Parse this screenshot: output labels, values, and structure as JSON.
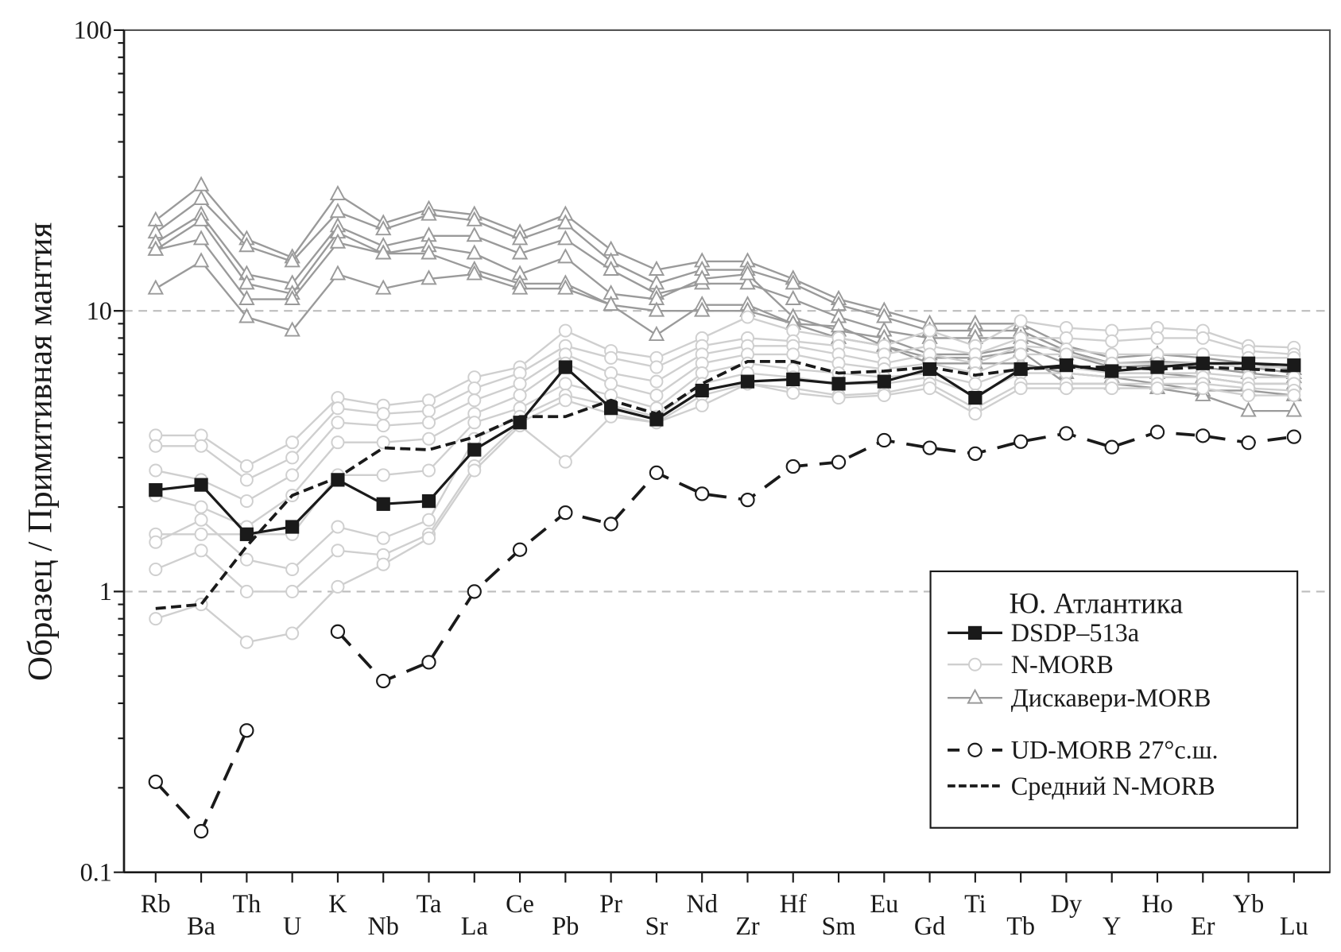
{
  "chart_data": {
    "type": "line",
    "title": "",
    "xlabel": "",
    "ylabel": "Образец / Примитивная мантия",
    "yscale": "log",
    "ylim": [
      0.1,
      100
    ],
    "yticks": [
      "0.1",
      "1",
      "10",
      "100"
    ],
    "grid": "dashed lines at 1 and 10",
    "categories": [
      "Rb",
      "Ba",
      "Th",
      "U",
      "K",
      "Nb",
      "Ta",
      "La",
      "Ce",
      "Pb",
      "Pr",
      "Sr",
      "Nd",
      "Zr",
      "Hf",
      "Sm",
      "Eu",
      "Gd",
      "Ti",
      "Tb",
      "Dy",
      "Y",
      "Ho",
      "Er",
      "Yb",
      "Lu"
    ],
    "legend": {
      "title": "Ю. Атлантика",
      "placement": "bottom-right",
      "entries": [
        "DSDP–513a",
        "N-MORB",
        "Дискавери-MORB",
        "UD-MORB 27°с.ш.",
        "Средний N-MORB"
      ]
    },
    "series": [
      {
        "name": "Дискавери-MORB",
        "group": "discovery",
        "color": "#9a9a9a",
        "marker": "triangle",
        "values": [
          21,
          28,
          18,
          15.5,
          26,
          20.5,
          23,
          22,
          19,
          22,
          16.5,
          14,
          15,
          15,
          13,
          11,
          10,
          9,
          9,
          9,
          7.5,
          6.8,
          7,
          6.8,
          6.5,
          6.2
        ]
      },
      {
        "name": "Дискавери-MORB",
        "group": "discovery",
        "color": "#9a9a9a",
        "marker": "triangle",
        "values": [
          19,
          25,
          17,
          15,
          22.5,
          19.5,
          22,
          21,
          18,
          20.5,
          15,
          12.5,
          14,
          14,
          12.5,
          10.5,
          9.5,
          8.5,
          8.5,
          8.5,
          7.2,
          6.5,
          6.6,
          6.5,
          6.3,
          6
        ]
      },
      {
        "name": "Дискавери-MORB",
        "group": "discovery",
        "color": "#9a9a9a",
        "marker": "triangle",
        "values": [
          17.5,
          22,
          13.5,
          12.5,
          20,
          17,
          18.5,
          18.5,
          16,
          18,
          14,
          11.5,
          12.5,
          12.5,
          11,
          9.5,
          8.5,
          8,
          8,
          8,
          7,
          6.3,
          6.4,
          6.3,
          6,
          5.8
        ]
      },
      {
        "name": "Дискавери-MORB",
        "group": "discovery",
        "color": "#9a9a9a",
        "marker": "triangle",
        "values": [
          16.5,
          21,
          12.5,
          11.5,
          19,
          16,
          17,
          16,
          13.5,
          15.5,
          11.5,
          11,
          13,
          13.5,
          9.5,
          8.5,
          8,
          7,
          7,
          7.5,
          6.5,
          6,
          6,
          5.8,
          5.5,
          5.5
        ]
      },
      {
        "name": "Дискавери-MORB",
        "group": "discovery",
        "color": "#9a9a9a",
        "marker": "triangle",
        "values": [
          16.5,
          18,
          11,
          11,
          17.5,
          16,
          16,
          14,
          12.5,
          12.5,
          10.5,
          8.2,
          10.5,
          10.5,
          9,
          8,
          7.5,
          6.5,
          6.5,
          6.5,
          6,
          5.8,
          5.5,
          5.2,
          5.2,
          5
        ]
      },
      {
        "name": "Дискавери-MORB",
        "group": "discovery",
        "color": "#9a9a9a",
        "marker": "triangle",
        "values": [
          12,
          15,
          9.5,
          8.5,
          13.5,
          12,
          13,
          13.5,
          12,
          12,
          10.5,
          10,
          10,
          10,
          9,
          8.8,
          7.5,
          6.8,
          6.8,
          7.2,
          5.5,
          5.5,
          5.3,
          5,
          4.4,
          4.4
        ]
      },
      {
        "name": "N-MORB",
        "group": "nmorb",
        "color": "#cfcfcf",
        "marker": "circle",
        "values": [
          3.6,
          3.6,
          2.8,
          3.4,
          4.9,
          4.6,
          4.8,
          5.8,
          6.3,
          8.5,
          7.2,
          6.8,
          8,
          9.5,
          8.5,
          8,
          7.5,
          8.5,
          7.5,
          9.2,
          8.7,
          8.5,
          8.7,
          8.5,
          7.5,
          7.4
        ]
      },
      {
        "name": "N-MORB",
        "group": "nmorb",
        "color": "#cfcfcf",
        "marker": "circle",
        "values": [
          3.3,
          3.3,
          2.5,
          3.0,
          4.5,
          4.3,
          4.4,
          5.3,
          6,
          7.5,
          6.8,
          6.3,
          7.5,
          8,
          7.8,
          7.5,
          7,
          7.5,
          7,
          8,
          8,
          7.8,
          8,
          8,
          7.2,
          7
        ]
      },
      {
        "name": "N-MORB",
        "group": "nmorb",
        "color": "#cfcfcf",
        "marker": "circle",
        "values": [
          2.7,
          2.5,
          2.1,
          2.6,
          4.0,
          3.9,
          4.0,
          4.8,
          5.5,
          7,
          6,
          5.6,
          7,
          7.5,
          7.5,
          7,
          6.5,
          7,
          6.5,
          7.5,
          7.3,
          7,
          7,
          7,
          6.8,
          6.8
        ]
      },
      {
        "name": "N-MORB",
        "group": "nmorb",
        "color": "#cfcfcf",
        "marker": "circle",
        "values": [
          2.2,
          2.0,
          1.7,
          2.2,
          3.4,
          3.4,
          3.5,
          4.3,
          5,
          6.5,
          5.5,
          5,
          6.5,
          7,
          7,
          6.5,
          6.2,
          6.5,
          6,
          7,
          7,
          6.5,
          6.5,
          6.5,
          6.3,
          6.3
        ]
      },
      {
        "name": "N-MORB",
        "group": "nmorb",
        "color": "#cfcfcf",
        "marker": "circle",
        "values": [
          1.6,
          1.6,
          1.6,
          1.6,
          2.6,
          2.6,
          2.7,
          4,
          4.5,
          5.5,
          5,
          4.5,
          6,
          6.5,
          6.2,
          6,
          5.8,
          6,
          5.5,
          6.3,
          6.3,
          6,
          6,
          6,
          5.8,
          5.8
        ]
      },
      {
        "name": "N-MORB",
        "group": "nmorb",
        "color": "#cfcfcf",
        "marker": "circle",
        "values": [
          1.5,
          1.8,
          1.3,
          1.2,
          1.7,
          1.55,
          1.8,
          3.5,
          4.2,
          5,
          4.6,
          4.2,
          5.5,
          6,
          5.8,
          5.5,
          5.5,
          5.8,
          5,
          6,
          6,
          5.8,
          5.8,
          5.8,
          5.5,
          5.5
        ]
      },
      {
        "name": "N-MORB",
        "group": "nmorb",
        "color": "#cfcfcf",
        "marker": "circle",
        "values": [
          1.2,
          1.4,
          1.0,
          1.0,
          1.4,
          1.35,
          1.6,
          2.8,
          4,
          4.8,
          4.3,
          4,
          5,
          5.5,
          5.3,
          5,
          5.1,
          5.5,
          4.5,
          5.5,
          5.5,
          5.5,
          5.5,
          5.5,
          5.3,
          5.2
        ]
      },
      {
        "name": "N-MORB",
        "group": "nmorb",
        "color": "#cfcfcf",
        "marker": "circle",
        "values": [
          0.8,
          0.9,
          0.66,
          0.71,
          1.04,
          1.25,
          1.55,
          2.7,
          3.9,
          2.9,
          4.2,
          4.0,
          4.6,
          5.5,
          5.1,
          4.9,
          5.0,
          5.3,
          4.3,
          5.3,
          5.3,
          5.3,
          5.3,
          5.3,
          5,
          5
        ]
      },
      {
        "name": "Средний N-MORB",
        "group": "avg",
        "color": "#1a1a1a",
        "marker": "none",
        "dash": "short",
        "values": [
          0.87,
          0.9,
          1.45,
          2.2,
          2.55,
          3.25,
          3.2,
          3.55,
          4.2,
          4.2,
          4.8,
          4.3,
          5.5,
          6.6,
          6.6,
          6.0,
          6.1,
          6.3,
          5.9,
          6.2,
          6.3,
          6.3,
          6.2,
          6.3,
          6.2,
          6.1
        ]
      },
      {
        "name": "UD-MORB 27°с.ш.",
        "group": "ud",
        "color": "#1a1a1a",
        "marker": "open-circle",
        "dash": "long",
        "values": [
          0.21,
          0.14,
          0.32,
          null,
          0.72,
          0.48,
          0.56,
          1.0,
          1.41,
          1.91,
          1.74,
          2.65,
          2.23,
          2.12,
          2.79,
          2.89,
          3.46,
          3.25,
          3.1,
          3.42,
          3.66,
          3.27,
          3.7,
          3.59,
          3.39,
          3.56
        ]
      },
      {
        "name": "DSDP–513a",
        "group": "dsdp",
        "color": "#1a1a1a",
        "marker": "square",
        "values": [
          2.3,
          2.4,
          1.6,
          1.7,
          2.5,
          2.05,
          2.1,
          3.2,
          4.0,
          6.3,
          4.5,
          4.1,
          5.2,
          5.6,
          5.7,
          5.5,
          5.6,
          6.2,
          4.9,
          6.2,
          6.4,
          6.1,
          6.3,
          6.5,
          6.5,
          6.4
        ]
      }
    ]
  }
}
